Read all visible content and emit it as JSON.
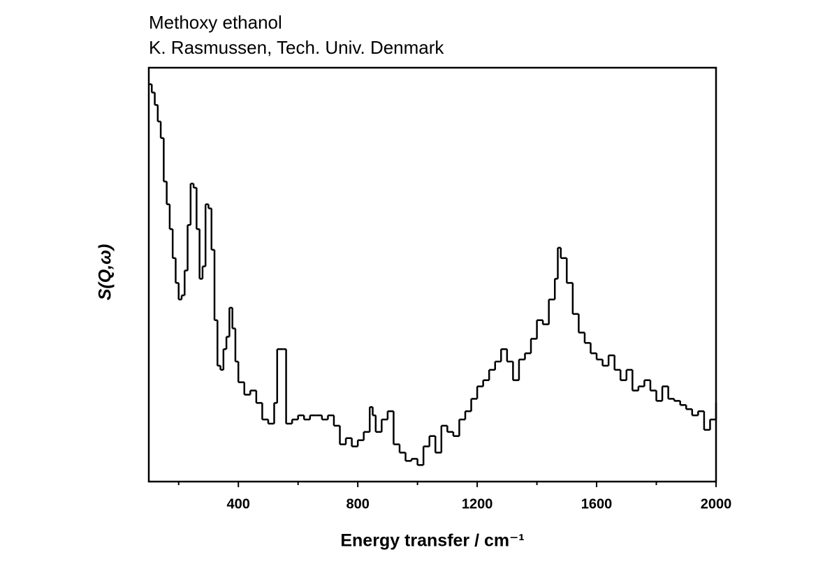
{
  "chart_data": {
    "type": "step",
    "title": "Methoxy ethanol",
    "subtitle": "K. Rasmussen, Tech. Univ. Denmark",
    "xlabel": "Energy transfer / cm⁻¹",
    "ylabel": "S(Q,ω)",
    "xlim": [
      100,
      2000
    ],
    "xticks": [
      400,
      800,
      1200,
      1600,
      2000
    ],
    "xminorticks": [
      200,
      600,
      1000,
      1400,
      1800
    ],
    "ylim": [
      0,
      100
    ],
    "color": "#000000",
    "x": [
      100,
      110,
      120,
      130,
      140,
      150,
      160,
      170,
      180,
      190,
      200,
      210,
      220,
      230,
      240,
      250,
      260,
      270,
      280,
      290,
      300,
      310,
      320,
      330,
      340,
      350,
      360,
      370,
      380,
      390,
      400,
      420,
      440,
      460,
      480,
      500,
      520,
      530,
      550,
      560,
      580,
      600,
      620,
      640,
      660,
      680,
      700,
      720,
      740,
      760,
      780,
      800,
      820,
      840,
      850,
      860,
      880,
      900,
      920,
      940,
      960,
      980,
      1000,
      1020,
      1040,
      1060,
      1080,
      1100,
      1120,
      1140,
      1160,
      1180,
      1200,
      1220,
      1240,
      1260,
      1280,
      1300,
      1320,
      1340,
      1360,
      1380,
      1400,
      1420,
      1440,
      1460,
      1470,
      1480,
      1500,
      1520,
      1540,
      1560,
      1580,
      1600,
      1620,
      1640,
      1660,
      1680,
      1700,
      1720,
      1740,
      1760,
      1780,
      1800,
      1820,
      1840,
      1860,
      1880,
      1900,
      1920,
      1940,
      1960,
      1980,
      2000
    ],
    "values": [
      96,
      94,
      91,
      87,
      83,
      72.5,
      67,
      61,
      54,
      48,
      44,
      45,
      51,
      62,
      72,
      71,
      61,
      49,
      52,
      67,
      66,
      56,
      39,
      28,
      27,
      32,
      35,
      42,
      37,
      29,
      24,
      21,
      22,
      19,
      15,
      14,
      19,
      32,
      32,
      14,
      15,
      16,
      15,
      16,
      16,
      15,
      16,
      13.5,
      9,
      10.5,
      8.5,
      10,
      12,
      18,
      16,
      12,
      15,
      17,
      9,
      7,
      5,
      5.5,
      4,
      8.5,
      11,
      7,
      13.5,
      12,
      11,
      15,
      17,
      20,
      23,
      24.5,
      27,
      29,
      32,
      29,
      24.5,
      29.5,
      31,
      34.5,
      39,
      38,
      44,
      49,
      56.5,
      54,
      48,
      40.5,
      36,
      33.5,
      31,
      29.5,
      28,
      30.5,
      27,
      24.5,
      27,
      22,
      23,
      24.5,
      22,
      19.5,
      23,
      20,
      19.5,
      18.5,
      17.5,
      16,
      17,
      12.5,
      15,
      19
    ]
  }
}
